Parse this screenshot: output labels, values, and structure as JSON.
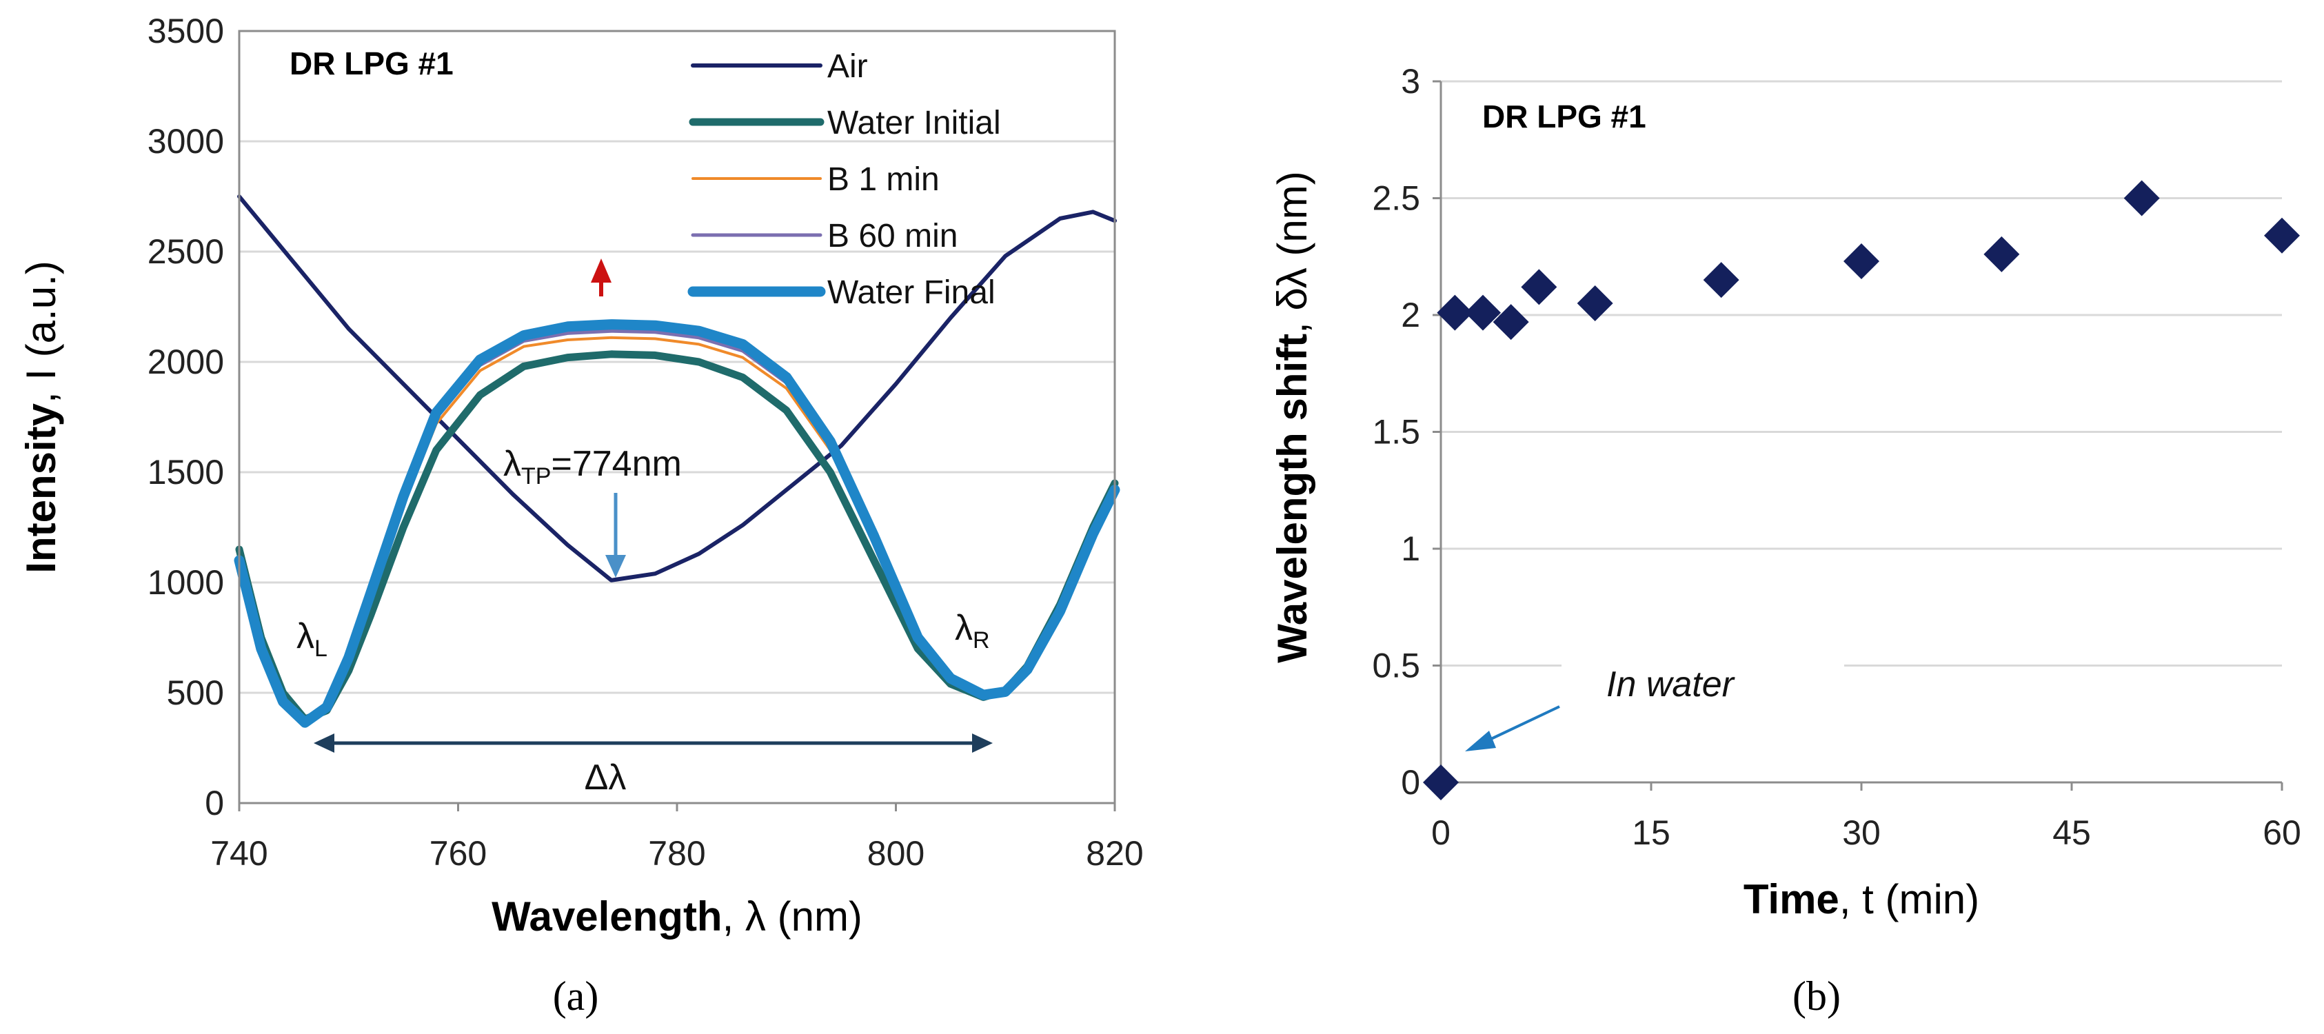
{
  "chart_data": [
    {
      "type": "line",
      "panel_label": "(a)",
      "title": "DR LPG #1",
      "xlabel_bold": "Wavelength",
      "xlabel_rest": ", λ (nm)",
      "ylabel_bold": "Intensity",
      "ylabel_rest": ", I (a.u.)",
      "xlim": [
        740,
        820
      ],
      "ylim": [
        0,
        3500
      ],
      "xticks": [
        740,
        760,
        780,
        800,
        820
      ],
      "yticks": [
        0,
        500,
        1000,
        1500,
        2000,
        2500,
        3000,
        3500
      ],
      "legend_position": "top-right",
      "series": [
        {
          "name": "Air",
          "color": "#1a2366",
          "x": [
            740,
            745,
            750,
            755,
            760,
            765,
            770,
            774,
            778,
            782,
            786,
            790,
            795,
            800,
            805,
            810,
            815,
            818,
            820
          ],
          "y": [
            2750,
            2450,
            2150,
            1900,
            1650,
            1400,
            1170,
            1010,
            1040,
            1130,
            1260,
            1420,
            1620,
            1900,
            2200,
            2480,
            2650,
            2680,
            2640
          ]
        },
        {
          "name": "Water Initial",
          "color": "#1f6b6b",
          "x": [
            740,
            742,
            744,
            746,
            748,
            750,
            752,
            755,
            758,
            762,
            766,
            770,
            774,
            778,
            782,
            786,
            790,
            794,
            798,
            802,
            805,
            808,
            810,
            812,
            815,
            818,
            820
          ],
          "y": [
            1150,
            750,
            500,
            380,
            420,
            600,
            850,
            1250,
            1600,
            1850,
            1980,
            2020,
            2035,
            2030,
            2000,
            1930,
            1780,
            1500,
            1100,
            700,
            540,
            480,
            510,
            620,
            900,
            1250,
            1450
          ]
        },
        {
          "name": "B 1 min",
          "color": "#f08a2a",
          "x": [
            740,
            742,
            744,
            746,
            748,
            750,
            752,
            755,
            758,
            762,
            766,
            770,
            774,
            778,
            782,
            786,
            790,
            794,
            798,
            802,
            805,
            808,
            810,
            812,
            815,
            818,
            820
          ],
          "y": [
            1120,
            720,
            470,
            370,
            430,
            640,
            920,
            1350,
            1720,
            1960,
            2070,
            2100,
            2110,
            2105,
            2080,
            2020,
            1880,
            1600,
            1180,
            740,
            560,
            490,
            510,
            610,
            880,
            1230,
            1430
          ]
        },
        {
          "name": "B 60 min",
          "color": "#7b6fb0",
          "x": [
            740,
            742,
            744,
            746,
            748,
            750,
            752,
            755,
            758,
            762,
            766,
            770,
            774,
            778,
            782,
            786,
            790,
            794,
            798,
            802,
            805,
            808,
            810,
            812,
            815,
            818,
            820
          ],
          "y": [
            1110,
            710,
            465,
            368,
            432,
            650,
            935,
            1370,
            1745,
            1985,
            2095,
            2130,
            2140,
            2135,
            2110,
            2050,
            1905,
            1620,
            1195,
            745,
            562,
            490,
            508,
            608,
            875,
            1225,
            1425
          ]
        },
        {
          "name": "Water Final",
          "color": "#1f86c8",
          "x": [
            740,
            742,
            744,
            746,
            748,
            750,
            752,
            755,
            758,
            762,
            766,
            770,
            774,
            778,
            782,
            786,
            790,
            794,
            798,
            802,
            805,
            808,
            810,
            812,
            815,
            818,
            820
          ],
          "y": [
            1100,
            700,
            460,
            365,
            435,
            660,
            950,
            1390,
            1770,
            2010,
            2120,
            2160,
            2170,
            2165,
            2140,
            2080,
            1930,
            1640,
            1210,
            750,
            565,
            490,
            505,
            605,
            870,
            1220,
            1420
          ]
        }
      ],
      "annotations": {
        "turning_point": "λTP=774nm",
        "turning_point_base": "λ",
        "turning_point_sub": "TP",
        "turning_point_rest": "=774nm",
        "lambda_l_base": "λ",
        "lambda_l_sub": "L",
        "lambda_r_base": "λ",
        "lambda_r_sub": "R",
        "delta_lambda": "Δλ"
      }
    },
    {
      "type": "scatter",
      "panel_label": "(b)",
      "title": "DR LPG #1",
      "xlabel_bold": "Time",
      "xlabel_rest": ", t (min)",
      "ylabel_bold": "Wavelength shift",
      "ylabel_rest": ", δλ (nm)",
      "xlim": [
        0,
        60
      ],
      "ylim": [
        0,
        3
      ],
      "xticks": [
        0,
        15,
        30,
        45,
        60
      ],
      "yticks": [
        0,
        0.5,
        1,
        1.5,
        2,
        2.5,
        3
      ],
      "marker_color": "#14205c",
      "x": [
        0,
        1,
        3,
        5,
        7,
        11,
        20,
        30,
        40,
        50,
        60
      ],
      "y": [
        0,
        2.01,
        2.01,
        1.97,
        2.12,
        2.05,
        2.15,
        2.23,
        2.26,
        2.5,
        2.34
      ],
      "annotation": "In water"
    }
  ]
}
